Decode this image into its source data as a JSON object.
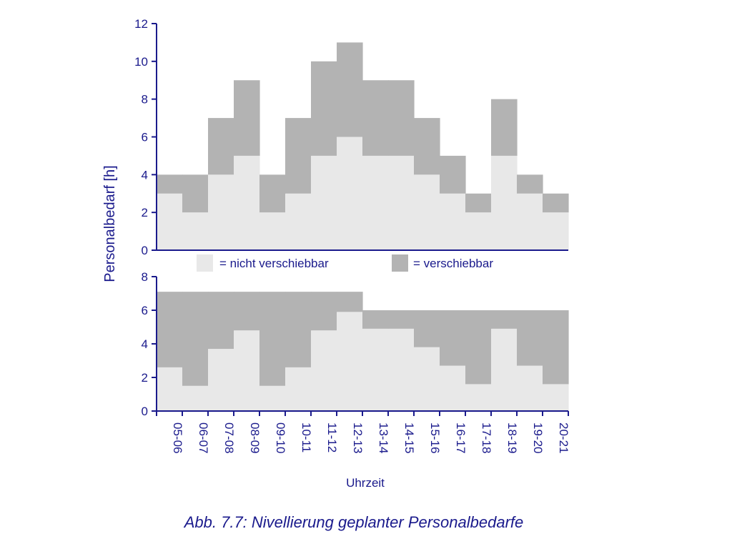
{
  "colors": {
    "nicht_verschiebbar": "#e8e8e8",
    "verschiebbar": "#b3b3b3",
    "axis": "#1a1a8c"
  },
  "chart_data": [
    {
      "type": "bar",
      "stacked": true,
      "categories": [
        "05-06",
        "06-07",
        "07-08",
        "08-09",
        "09-10",
        "10-11",
        "11-12",
        "12-13",
        "13-14",
        "14-15",
        "15-16",
        "16-17",
        "17-18",
        "18-19",
        "19-20",
        "20-21"
      ],
      "series": [
        {
          "name": "= nicht verschiebbar",
          "values": [
            3,
            2,
            4,
            5,
            2,
            3,
            5,
            6,
            5,
            5,
            4,
            3,
            2,
            5,
            3,
            2
          ]
        },
        {
          "name": "= verschiebbar",
          "values": [
            1,
            2,
            3,
            4,
            2,
            4,
            5,
            5,
            4,
            4,
            3,
            2,
            1,
            3,
            1,
            1
          ]
        }
      ],
      "ylim": [
        0,
        12
      ],
      "yticks": [
        "0",
        "2",
        "4",
        "6",
        "8",
        "10",
        "12"
      ]
    },
    {
      "type": "bar",
      "stacked": true,
      "categories": [
        "05-06",
        "06-07",
        "07-08",
        "08-09",
        "09-10",
        "10-11",
        "11-12",
        "12-13",
        "13-14",
        "14-15",
        "15-16",
        "16-17",
        "17-18",
        "18-19",
        "19-20",
        "20-21"
      ],
      "series": [
        {
          "name": "= nicht verschiebbar",
          "values": [
            2.6,
            1.5,
            3.7,
            4.8,
            1.5,
            2.6,
            4.8,
            5.9,
            4.9,
            4.9,
            3.8,
            2.7,
            1.6,
            4.9,
            2.7,
            1.6
          ]
        },
        {
          "name": "= verschiebbar",
          "values": [
            4.5,
            5.6,
            3.4,
            2.3,
            5.6,
            4.5,
            2.3,
            1.2,
            1.1,
            1.1,
            2.2,
            3.3,
            4.4,
            1.1,
            3.3,
            4.4
          ]
        }
      ],
      "ylim": [
        0,
        8
      ],
      "yticks": [
        "0",
        "2",
        "4",
        "6",
        "8"
      ]
    }
  ],
  "legend": {
    "nicht_label": "= nicht verschiebbar",
    "versch_label": "= verschiebbar"
  },
  "ylabel": "Personalbedarf [h]",
  "xlabel": "Uhrzeit",
  "caption": "Abb. 7.7: Nivellierung geplanter Personalbedarfe"
}
